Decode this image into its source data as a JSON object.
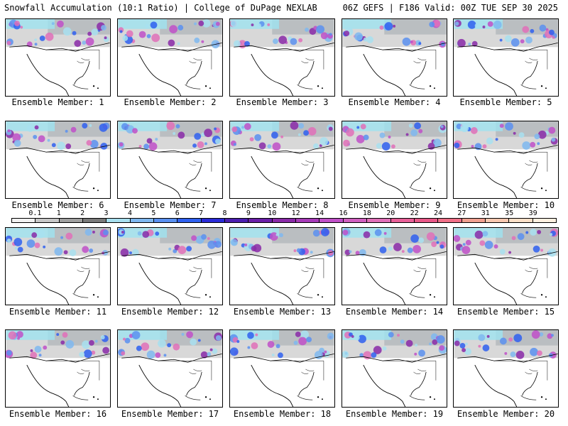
{
  "header": {
    "left": "Snowfall Accumulation (10:1 Ratio) | College of DuPage NEXLAB",
    "right": "06Z GEFS | F186 Valid: 00Z TUE SEP 30 2025"
  },
  "panels": [
    {
      "label": "Ensemble Member: 1"
    },
    {
      "label": "Ensemble Member: 2"
    },
    {
      "label": "Ensemble Member: 3"
    },
    {
      "label": "Ensemble Member: 4"
    },
    {
      "label": "Ensemble Member: 5"
    },
    {
      "label": "Ensemble Member: 6"
    },
    {
      "label": "Ensemble Member: 7"
    },
    {
      "label": "Ensemble Member: 8"
    },
    {
      "label": "Ensemble Member: 9"
    },
    {
      "label": "Ensemble Member: 10"
    },
    {
      "label": "Ensemble Member: 11"
    },
    {
      "label": "Ensemble Member: 12"
    },
    {
      "label": "Ensemble Member: 13"
    },
    {
      "label": "Ensemble Member: 14"
    },
    {
      "label": "Ensemble Member: 15"
    },
    {
      "label": "Ensemble Member: 16"
    },
    {
      "label": "Ensemble Member: 17"
    },
    {
      "label": "Ensemble Member: 18"
    },
    {
      "label": "Ensemble Member: 19"
    },
    {
      "label": "Ensemble Member: 20"
    }
  ],
  "legend": {
    "labels": [
      "0.1",
      "1",
      "2",
      "3",
      "4",
      "5",
      "6",
      "7",
      "8",
      "9",
      "10",
      "12",
      "14",
      "16",
      "18",
      "20",
      "22",
      "24",
      "27",
      "31",
      "35",
      "39"
    ],
    "colors": [
      "#f2f2f2",
      "#c8c8c8",
      "#a0a0a0",
      "#7a7a7a",
      "#a8e0f0",
      "#7fb8f0",
      "#5a90f0",
      "#2f60f0",
      "#2a2ad8",
      "#4b1fb0",
      "#6a1fa8",
      "#8a2aa8",
      "#a63ab8",
      "#c050c8",
      "#d060c0",
      "#e070b8",
      "#e86098",
      "#e85888",
      "#f07088",
      "#f0a090",
      "#f8c8b0",
      "#fde0c8",
      "#fff0e0"
    ]
  }
}
